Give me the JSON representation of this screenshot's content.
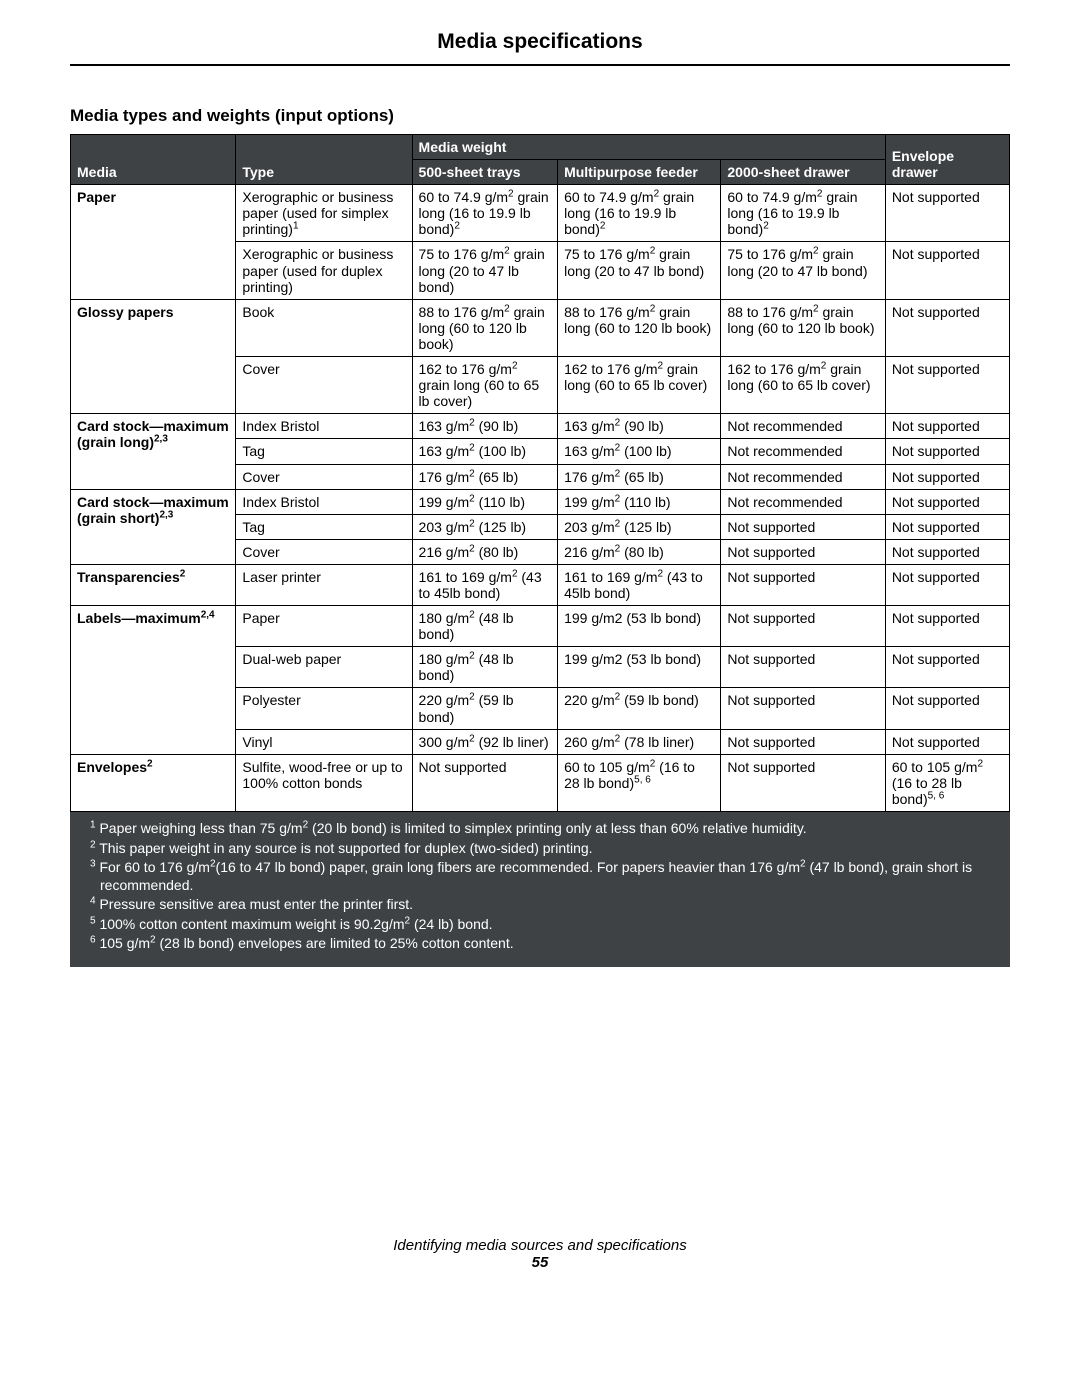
{
  "page_title": "Media specifications",
  "section_title": "Media types and weights (input options)",
  "header": {
    "media": "Media",
    "type": "Type",
    "weight_group": "Media weight",
    "c500": "500-sheet trays",
    "multi": "Multipurpose feeder",
    "d2000": "2000-sheet drawer",
    "env": "Envelope drawer"
  },
  "rows": [
    {
      "media": "Paper",
      "media_rs": 2,
      "type_html": "Xerographic or business paper (used for simplex printing)<sup>1</sup>",
      "c500": "60 to 74.9 g/m<sup>2</sup> grain long (16 to 19.9 lb bond)<sup>2</sup>",
      "multi": "60 to 74.9 g/m<sup>2</sup> grain long (16 to 19.9 lb bond)<sup>2</sup>",
      "d2000": "60 to 74.9 g/m<sup>2</sup> grain long (16 to 19.9 lb bond)<sup>2</sup>",
      "env": "Not supported"
    },
    {
      "type_html": "Xerographic or business paper (used for duplex printing)",
      "c500": "75 to 176 g/m<sup>2</sup> grain long (20 to 47 lb bond)",
      "multi": "75 to 176 g/m<sup>2</sup> grain long (20 to 47 lb bond)",
      "d2000": "75 to 176 g/m<sup>2</sup> grain long (20 to 47 lb bond)",
      "env": "Not supported"
    },
    {
      "media": "Glossy papers",
      "media_rs": 2,
      "type_html": "Book",
      "c500": "88 to 176 g/m<sup>2</sup> grain long (60 to 120 lb book)",
      "multi": "88 to 176 g/m<sup>2</sup> grain long (60 to 120 lb book)",
      "d2000": "88 to 176 g/m<sup>2</sup> grain long (60 to 120 lb book)",
      "env": "Not supported"
    },
    {
      "type_html": "Cover",
      "c500": "162 to 176 g/m<sup>2</sup> grain long (60 to 65 lb cover)",
      "multi": "162 to 176 g/m<sup>2</sup> grain long (60 to 65 lb cover)",
      "d2000": "162 to 176 g/m<sup>2</sup> grain long (60 to 65 lb cover)",
      "env": "Not supported"
    },
    {
      "media_html": "Card stock—maximum (grain long)<sup>2,3</sup>",
      "media_rs": 3,
      "type_html": "Index Bristol",
      "c500": "163 g/m<sup>2</sup> (90 lb)",
      "multi": "163 g/m<sup>2</sup> (90 lb)",
      "d2000": "Not recommended",
      "env": "Not supported"
    },
    {
      "type_html": "Tag",
      "c500": "163 g/m<sup>2</sup> (100 lb)",
      "multi": "163 g/m<sup>2</sup> (100 lb)",
      "d2000": "Not recommended",
      "env": "Not supported"
    },
    {
      "type_html": "Cover",
      "c500": "176 g/m<sup>2</sup> (65 lb)",
      "multi": "176 g/m<sup>2</sup> (65 lb)",
      "d2000": "Not recommended",
      "env": "Not supported"
    },
    {
      "media_html": "Card stock—maximum (grain short)<sup>2,3</sup>",
      "media_rs": 3,
      "type_html": "Index Bristol",
      "c500": "199 g/m<sup>2</sup> (110 lb)",
      "multi": "199 g/m<sup>2</sup> (110 lb)",
      "d2000": "Not recommended",
      "env": "Not supported"
    },
    {
      "type_html": "Tag",
      "c500": "203 g/m<sup>2</sup> (125 lb)",
      "multi": "203 g/m<sup>2</sup> (125 lb)",
      "d2000": "Not supported",
      "env": "Not supported"
    },
    {
      "type_html": "Cover",
      "c500": "216 g/m<sup>2</sup> (80 lb)",
      "multi": "216 g/m<sup>2</sup> (80 lb)",
      "d2000": "Not supported",
      "env": "Not supported"
    },
    {
      "media_html": "Transparencies<sup>2</sup>",
      "media_rs": 1,
      "type_html": "Laser printer",
      "c500": "161 to 169 g/m<sup>2</sup> (43 to 45lb bond)",
      "multi": "161 to 169 g/m<sup>2</sup> (43 to 45lb bond)",
      "d2000": "Not supported",
      "env": "Not supported"
    },
    {
      "media_html": "Labels—maximum<sup>2,4</sup>",
      "media_rs": 4,
      "type_html": "Paper",
      "c500": "180 g/m<sup>2</sup> (48 lb bond)",
      "multi": "199 g/m2 (53 lb bond)",
      "d2000": "Not supported",
      "env": "Not supported"
    },
    {
      "type_html": "Dual-web paper",
      "c500": "180 g/m<sup>2</sup> (48 lb bond)",
      "multi": "199 g/m2 (53 lb bond)",
      "d2000": "Not supported",
      "env": "Not supported"
    },
    {
      "type_html": "Polyester",
      "c500": "220 g/m<sup>2</sup> (59 lb bond)",
      "multi": "220 g/m<sup>2</sup> (59 lb bond)",
      "d2000": "Not supported",
      "env": "Not supported"
    },
    {
      "type_html": "Vinyl",
      "c500": "300 g/m<sup>2</sup> (92 lb liner)",
      "multi": "260 g/m<sup>2</sup> (78 lb liner)",
      "d2000": "Not supported",
      "env": "Not supported"
    },
    {
      "media_html": "Envelopes<sup>2</sup>",
      "media_rs": 1,
      "type_html": "Sulfite, wood-free or up to 100% cotton bonds",
      "c500": "Not supported",
      "multi": "60 to 105 g/m<sup>2</sup> (16 to 28 lb bond)<sup>5, 6</sup>",
      "d2000": "Not supported",
      "env": "60 to 105 g/m<sup>2</sup> (16 to 28 lb bond)<sup>5, 6</sup>"
    }
  ],
  "footnotes": [
    "<sup>1</sup> Paper weighing less than 75 g/m<sup>2</sup> (20 lb bond) is limited to simplex printing only at less than 60% relative humidity.",
    "<sup>2</sup> This paper weight in any source is not supported for duplex (two-sided) printing.",
    "<sup>3</sup> For 60 to 176 g/m<sup>2</sup>(16 to 47 lb bond) paper, grain long fibers are recommended. For papers heavier than 176 g/m<sup>2</sup> (47 lb bond), grain short is recommended.",
    "<sup>4</sup> Pressure sensitive area must enter the printer first.",
    "<sup>5</sup> 100% cotton content maximum weight is 90.2g/m<sup>2</sup> (24 lb) bond.",
    "<sup>6</sup> 105 g/m<sup>2</sup> (28 lb bond) envelopes are limited to 25% cotton content."
  ],
  "footer_line": "Identifying media sources and specifications",
  "page_number": "55"
}
